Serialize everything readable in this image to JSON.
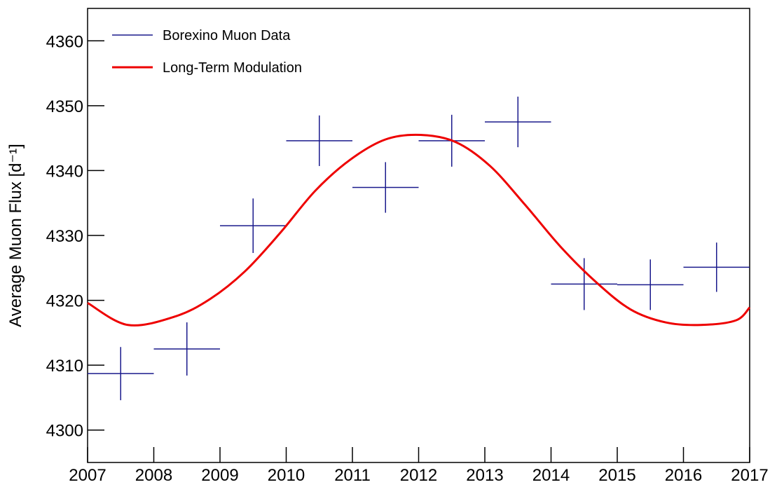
{
  "chart_data": {
    "type": "errorbar",
    "y_label": "Average Muon Flux [d⁻¹]",
    "xlim": [
      2007,
      2017
    ],
    "xticks": [
      2007,
      2008,
      2009,
      2010,
      2011,
      2012,
      2013,
      2014,
      2015,
      2016,
      2017
    ],
    "ylim": [
      4295,
      4365
    ],
    "yticks": [
      4300,
      4310,
      4320,
      4330,
      4340,
      4350,
      4360
    ],
    "legend": "top-left",
    "series": [
      {
        "name": "Borexino Muon Data",
        "color": "#1a1a8c",
        "kind": "errorbar",
        "x": [
          2007.5,
          2008.5,
          2009.5,
          2010.5,
          2011.5,
          2012.5,
          2013.5,
          2014.5,
          2015.5,
          2016.5
        ],
        "xerr": [
          0.5,
          0.5,
          0.5,
          0.5,
          0.5,
          0.5,
          0.5,
          0.5,
          0.5,
          0.5
        ],
        "values": [
          4308.7,
          4312.5,
          4331.5,
          4344.6,
          4337.4,
          4344.6,
          4347.5,
          4322.5,
          4322.4,
          4325.1
        ],
        "yerr": [
          4.1,
          4.1,
          4.2,
          3.9,
          3.9,
          4.0,
          3.9,
          4.0,
          3.9,
          3.8
        ]
      },
      {
        "name": "Long-Term Modulation",
        "color": "#ee0000",
        "kind": "line",
        "x": [
          2007.0,
          2007.61,
          2008.32,
          2008.85,
          2009.38,
          2009.91,
          2010.44,
          2010.97,
          2011.5,
          2012.03,
          2012.56,
          2013.08,
          2013.61,
          2014.14,
          2014.67,
          2015.2,
          2015.73,
          2016.26,
          2016.79,
          2017.0
        ],
        "values": [
          4319.6,
          4316.2,
          4317.5,
          4320.2,
          4324.5,
          4330.4,
          4336.9,
          4341.7,
          4344.8,
          4345.5,
          4344.4,
          4340.7,
          4334.7,
          4328.3,
          4322.9,
          4318.6,
          4316.6,
          4316.2,
          4316.9,
          4318.9
        ]
      }
    ]
  }
}
